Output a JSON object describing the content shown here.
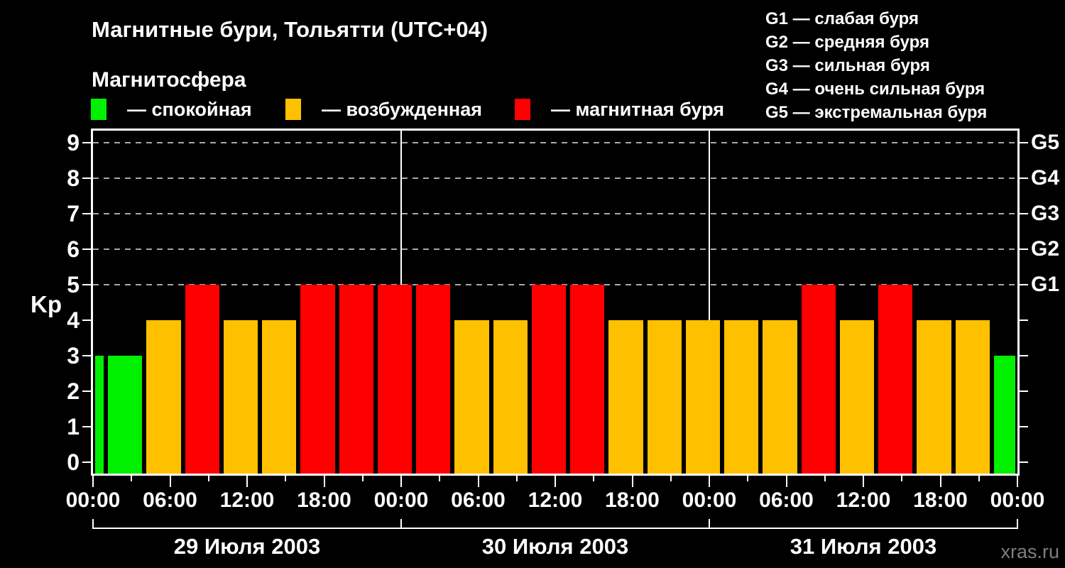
{
  "header": {
    "title": "Магнитные бури, Тольятти (UTC+04)"
  },
  "magnetosphere_legend": {
    "title": "Магнитосфера",
    "items": [
      {
        "key": "quiet",
        "label": "— спокойная",
        "color": "#00f000",
        "x": 128
      },
      {
        "key": "unsettled",
        "label": "— возбужденная",
        "color": "#ffc000",
        "x": 402
      },
      {
        "key": "storm",
        "label": "— магнитная буря",
        "color": "#ff0000",
        "x": 725
      }
    ]
  },
  "storm_scale_legend": {
    "rows": [
      "G1 — слабая буря",
      "G2 — средняя буря",
      "G3 — сильная буря",
      "G4 — очень сильная буря",
      "G5 — экстремальная буря"
    ]
  },
  "chart_data": {
    "type": "bar",
    "title": "Магнитные бури, Тольятти (UTC+04)",
    "ylabel": "Kp",
    "ylim": [
      0,
      9.3
    ],
    "y_ticks": [
      0,
      1,
      2,
      3,
      4,
      5,
      6,
      7,
      8,
      9
    ],
    "dashed_gridlines_at_kp": [
      5,
      6,
      7,
      8,
      9
    ],
    "right_axis_labels": [
      {
        "kp": 5,
        "label": "G1"
      },
      {
        "kp": 6,
        "label": "G2"
      },
      {
        "kp": 7,
        "label": "G3"
      },
      {
        "kp": 8,
        "label": "G4"
      },
      {
        "kp": 9,
        "label": "G5"
      }
    ],
    "x_axis": {
      "total_hours": 72,
      "minor_tick_every_hours": 3,
      "major_tick_every_hours": 6,
      "hour_labels": [
        "00:00",
        "06:00",
        "12:00",
        "18:00",
        "00:00",
        "06:00",
        "12:00",
        "18:00",
        "00:00",
        "06:00",
        "12:00",
        "18:00",
        "00:00"
      ],
      "day_boundaries_hours": [
        0,
        24,
        48,
        72
      ],
      "day_labels": [
        "29 Июля 2003",
        "30 Июля 2003",
        "31 Июля 2003"
      ]
    },
    "level_colors": {
      "quiet": "#00f000",
      "unsettled": "#ffc000",
      "storm": "#ff0000"
    },
    "bars": [
      {
        "start_hour": 0,
        "end_hour": 1,
        "kp": 3,
        "level": "quiet"
      },
      {
        "start_hour": 1,
        "end_hour": 4,
        "kp": 3,
        "level": "quiet"
      },
      {
        "start_hour": 4,
        "end_hour": 7,
        "kp": 4,
        "level": "unsettled"
      },
      {
        "start_hour": 7,
        "end_hour": 10,
        "kp": 5,
        "level": "storm"
      },
      {
        "start_hour": 10,
        "end_hour": 13,
        "kp": 4,
        "level": "unsettled"
      },
      {
        "start_hour": 13,
        "end_hour": 16,
        "kp": 4,
        "level": "unsettled"
      },
      {
        "start_hour": 16,
        "end_hour": 19,
        "kp": 5,
        "level": "storm"
      },
      {
        "start_hour": 19,
        "end_hour": 22,
        "kp": 5,
        "level": "storm"
      },
      {
        "start_hour": 22,
        "end_hour": 25,
        "kp": 5,
        "level": "storm"
      },
      {
        "start_hour": 25,
        "end_hour": 28,
        "kp": 5,
        "level": "storm"
      },
      {
        "start_hour": 28,
        "end_hour": 31,
        "kp": 4,
        "level": "unsettled"
      },
      {
        "start_hour": 31,
        "end_hour": 34,
        "kp": 4,
        "level": "unsettled"
      },
      {
        "start_hour": 34,
        "end_hour": 37,
        "kp": 5,
        "level": "storm"
      },
      {
        "start_hour": 37,
        "end_hour": 40,
        "kp": 5,
        "level": "storm"
      },
      {
        "start_hour": 40,
        "end_hour": 43,
        "kp": 4,
        "level": "unsettled"
      },
      {
        "start_hour": 43,
        "end_hour": 46,
        "kp": 4,
        "level": "unsettled"
      },
      {
        "start_hour": 46,
        "end_hour": 49,
        "kp": 4,
        "level": "unsettled"
      },
      {
        "start_hour": 49,
        "end_hour": 52,
        "kp": 4,
        "level": "unsettled"
      },
      {
        "start_hour": 52,
        "end_hour": 55,
        "kp": 4,
        "level": "unsettled"
      },
      {
        "start_hour": 55,
        "end_hour": 58,
        "kp": 5,
        "level": "storm"
      },
      {
        "start_hour": 58,
        "end_hour": 61,
        "kp": 4,
        "level": "unsettled"
      },
      {
        "start_hour": 61,
        "end_hour": 64,
        "kp": 5,
        "level": "storm"
      },
      {
        "start_hour": 64,
        "end_hour": 67,
        "kp": 4,
        "level": "unsettled"
      },
      {
        "start_hour": 67,
        "end_hour": 70,
        "kp": 4,
        "level": "unsettled"
      },
      {
        "start_hour": 70,
        "end_hour": 72,
        "kp": 3,
        "level": "quiet"
      }
    ]
  },
  "footer": {
    "watermark": "xras.ru"
  }
}
